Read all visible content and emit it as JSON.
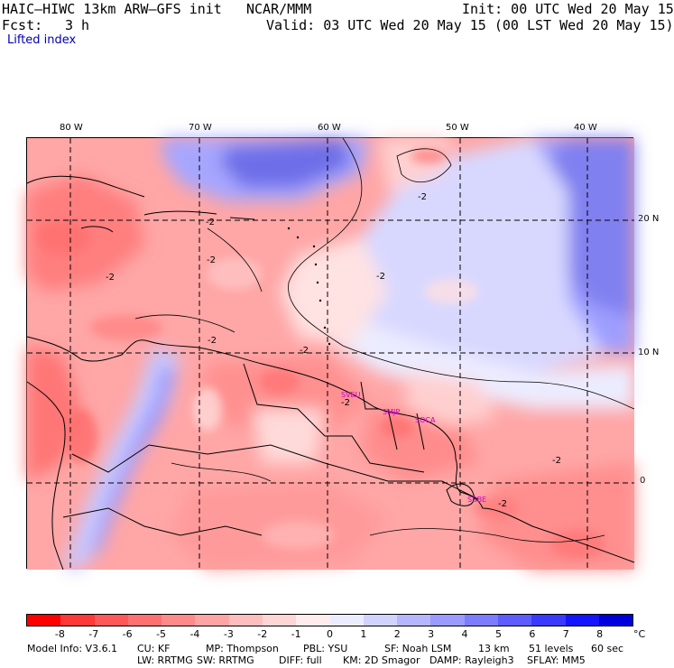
{
  "header": {
    "model": "HAIC–HIWC 13km ARW–GFS init",
    "org": "NCAR/MMM",
    "init": "Init: 00 UTC Wed 20 May 15",
    "fcst_label": "Fcst:",
    "fcst_value": "3 h",
    "valid": "Valid: 03 UTC Wed 20 May 15 (00 LST Wed 20 May 15)",
    "field": "Lifted index"
  },
  "map": {
    "lon_labels": [
      "80 W",
      "70 W",
      "60 W",
      "50 W",
      "40 W"
    ],
    "lat_labels": [
      "20 N",
      "10 N",
      "0"
    ],
    "stations": [
      "SVEU",
      "SMJP",
      "SOCA",
      "SBBE"
    ],
    "contour_labels": [
      "-2",
      "-2",
      "-2",
      "-2",
      "-2",
      "-2",
      "-2",
      "-2",
      "-2",
      "-2"
    ]
  },
  "colorbar": {
    "ticks": [
      "-8",
      "-7",
      "-6",
      "-5",
      "-4",
      "-3",
      "-2",
      "-1",
      "0",
      "1",
      "2",
      "3",
      "4",
      "5",
      "6",
      "7",
      "8"
    ],
    "unit": "°C",
    "colors": [
      "#ff0000",
      "#ff3838",
      "#ff5858",
      "#ff7070",
      "#ff8a8a",
      "#ffa4a4",
      "#ffbebe",
      "#ffd6d6",
      "#ffecec",
      "#ececff",
      "#d2d2ff",
      "#b6b6ff",
      "#9a9aff",
      "#7c7cff",
      "#5c5cff",
      "#3a3aff",
      "#1414ff",
      "#0000dd"
    ]
  },
  "footer": {
    "line1": [
      "Model Info: V3.6.1",
      "CU: KF",
      "MP: Thompson",
      "PBL: YSU",
      "SF: Noah LSM",
      "13 km",
      "51 levels",
      "60 sec"
    ],
    "line2": [
      "LW: RRTMG",
      "SW: RRTMG",
      "DIFF: full",
      "KM: 2D Smagor",
      "DAMP: Rayleigh3",
      "SFLAY: MM5"
    ]
  }
}
